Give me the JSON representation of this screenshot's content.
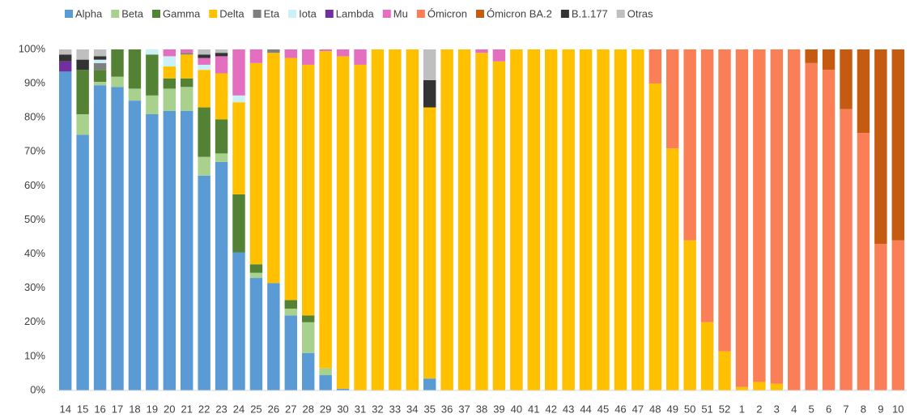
{
  "chart_data": {
    "type": "stacked_bar_100",
    "categories": [
      "14",
      "15",
      "16",
      "17",
      "18",
      "19",
      "20",
      "21",
      "22",
      "23",
      "24",
      "25",
      "26",
      "27",
      "28",
      "29",
      "30",
      "31",
      "32",
      "33",
      "34",
      "35",
      "36",
      "37",
      "38",
      "39",
      "40",
      "41",
      "42",
      "43",
      "44",
      "45",
      "46",
      "47",
      "48",
      "49",
      "50",
      "51",
      "52",
      "1",
      "2",
      "3",
      "4",
      "5",
      "6",
      "7",
      "8",
      "9",
      "10"
    ],
    "ylim": [
      0,
      100
    ],
    "yticks": [
      {
        "value": 0,
        "label": "0%"
      },
      {
        "value": 10,
        "label": "10%"
      },
      {
        "value": 20,
        "label": "20%"
      },
      {
        "value": 30,
        "label": "30%"
      },
      {
        "value": 40,
        "label": "40%"
      },
      {
        "value": 50,
        "label": "50%"
      },
      {
        "value": 60,
        "label": "60%"
      },
      {
        "value": 70,
        "label": "70%"
      },
      {
        "value": 80,
        "label": "80%"
      },
      {
        "value": 90,
        "label": "90%"
      },
      {
        "value": 100,
        "label": "100%"
      }
    ],
    "series": [
      {
        "name": "Alpha",
        "color": "#5b9bd5",
        "values": [
          93.5,
          75,
          89.5,
          89,
          85,
          81,
          82,
          82,
          63,
          67,
          40.5,
          33,
          31.5,
          22,
          11,
          4.5,
          0.5,
          0,
          0,
          0,
          0,
          3.5,
          0,
          0,
          0,
          0,
          0,
          0,
          0,
          0,
          0,
          0,
          0,
          0,
          0,
          0,
          0,
          0,
          0,
          0,
          0,
          0,
          0,
          0,
          0,
          0,
          0,
          0,
          0
        ]
      },
      {
        "name": "Beta",
        "color": "#a9d18e",
        "values": [
          0,
          6,
          1,
          3,
          3.5,
          5.5,
          6.5,
          7,
          5.5,
          2.5,
          0,
          1.5,
          0,
          2,
          9,
          2,
          0,
          0,
          0,
          0,
          0,
          0,
          0,
          0,
          0,
          0,
          0,
          0,
          0,
          0,
          0,
          0,
          0,
          0,
          0,
          0,
          0,
          0,
          0,
          0,
          0,
          0,
          0,
          0,
          0,
          0,
          0,
          0,
          0
        ]
      },
      {
        "name": "Gamma",
        "color": "#548235",
        "values": [
          0,
          13,
          3.5,
          8,
          11.5,
          12,
          3,
          2.5,
          14.5,
          10,
          17,
          2.5,
          0,
          2.5,
          2,
          0,
          0,
          0,
          0,
          0,
          0,
          0,
          0,
          0,
          0,
          0,
          0,
          0,
          0,
          0,
          0,
          0,
          0,
          0,
          0,
          0,
          0,
          0,
          0,
          0,
          0,
          0,
          0,
          0,
          0,
          0,
          0,
          0,
          0
        ]
      },
      {
        "name": "Delta",
        "color": "#ffc000",
        "values": [
          0,
          0,
          0,
          0,
          0,
          0,
          3.5,
          7,
          11,
          13.5,
          27,
          59,
          67.5,
          71,
          73.5,
          93,
          97.5,
          95.5,
          100,
          100,
          100,
          79.5,
          100,
          100,
          99,
          96.5,
          100,
          100,
          100,
          100,
          100,
          100,
          100,
          100,
          90,
          71,
          44,
          20,
          11.5,
          1,
          2.5,
          2,
          0,
          0,
          0,
          0,
          0,
          0,
          0
        ]
      },
      {
        "name": "Eta",
        "color": "#7f7f7f",
        "values": [
          0,
          0,
          2,
          0,
          0,
          0,
          0,
          0.5,
          0,
          0,
          0,
          0,
          1,
          0,
          0,
          0,
          0,
          0,
          0,
          0,
          0,
          0,
          0,
          0,
          0,
          0,
          0,
          0,
          0,
          0,
          0,
          0,
          0,
          0,
          0,
          0,
          0,
          0,
          0,
          0,
          0,
          0,
          0,
          0,
          0,
          0,
          0,
          0,
          0
        ]
      },
      {
        "name": "Iota",
        "color": "#c9f1f6",
        "values": [
          0,
          0,
          1,
          0,
          0,
          1.5,
          3,
          0,
          1.5,
          0,
          2,
          0,
          0,
          0,
          0,
          0,
          0,
          0,
          0,
          0,
          0,
          0,
          0,
          0,
          0,
          0,
          0,
          0,
          0,
          0,
          0,
          0,
          0,
          0,
          0,
          0,
          0,
          0,
          0,
          0,
          0,
          0,
          0,
          0,
          0,
          0,
          0,
          0,
          0
        ]
      },
      {
        "name": "Lambda",
        "color": "#7030a0",
        "values": [
          3,
          0,
          0,
          0,
          0,
          0,
          0,
          0,
          0,
          0,
          0,
          0,
          0,
          0,
          0,
          0,
          0,
          0,
          0,
          0,
          0,
          0,
          0,
          0,
          0,
          0,
          0,
          0,
          0,
          0,
          0,
          0,
          0,
          0,
          0,
          0,
          0,
          0,
          0,
          0,
          0,
          0,
          0,
          0,
          0,
          0,
          0,
          0,
          0
        ]
      },
      {
        "name": "Mu",
        "color": "#e46fc0",
        "values": [
          0,
          0,
          0,
          0,
          0,
          0,
          2,
          1,
          2,
          5,
          13.5,
          4,
          0,
          2.5,
          4.5,
          0.5,
          2,
          4.5,
          0,
          0,
          0,
          0,
          0,
          0,
          1,
          3.5,
          0,
          0,
          0,
          0,
          0,
          0,
          0,
          0,
          0,
          0,
          0,
          0,
          0,
          0,
          0,
          0,
          0,
          0,
          0,
          0,
          0,
          0,
          0
        ]
      },
      {
        "name": "Ómicron",
        "color": "#fb7f56",
        "values": [
          0,
          0,
          0,
          0,
          0,
          0,
          0,
          0,
          0,
          0,
          0,
          0,
          0,
          0,
          0,
          0,
          0,
          0,
          0,
          0,
          0,
          0,
          0,
          0,
          0,
          0,
          0,
          0,
          0,
          0,
          0,
          0,
          0,
          0,
          10,
          29,
          56,
          80,
          88.5,
          99,
          97.5,
          98,
          100,
          96,
          94,
          82.5,
          75.5,
          43,
          44
        ]
      },
      {
        "name": "Ómicron BA.2",
        "color": "#c55a11",
        "values": [
          0,
          0,
          0,
          0,
          0,
          0,
          0,
          0,
          0,
          0,
          0,
          0,
          0,
          0,
          0,
          0,
          0,
          0,
          0,
          0,
          0,
          0,
          0,
          0,
          0,
          0,
          0,
          0,
          0,
          0,
          0,
          0,
          0,
          0,
          0,
          0,
          0,
          0,
          0,
          0,
          0,
          0,
          0,
          4,
          6,
          17.5,
          24.5,
          57,
          56
        ]
      },
      {
        "name": "B.1.177",
        "color": "#333333",
        "values": [
          2,
          3,
          1,
          0,
          0,
          0,
          0,
          0,
          1,
          1,
          0,
          0,
          0,
          0,
          0,
          0,
          0,
          0,
          0,
          0,
          0,
          8,
          0,
          0,
          0,
          0,
          0,
          0,
          0,
          0,
          0,
          0,
          0,
          0,
          0,
          0,
          0,
          0,
          0,
          0,
          0,
          0,
          0,
          0,
          0,
          0,
          0,
          0,
          0
        ]
      },
      {
        "name": "Otras",
        "color": "#bfbfbf",
        "values": [
          1.5,
          3,
          2,
          0,
          0,
          0,
          0,
          0,
          1.5,
          1,
          0,
          0,
          0,
          0,
          0,
          0,
          0,
          0,
          0,
          0,
          0,
          9,
          0,
          0,
          0,
          0,
          0,
          0,
          0,
          0,
          0,
          0,
          0,
          0,
          0,
          0,
          0,
          0,
          0,
          0,
          0,
          0,
          0,
          0,
          0,
          0,
          0,
          0,
          0
        ]
      }
    ]
  }
}
